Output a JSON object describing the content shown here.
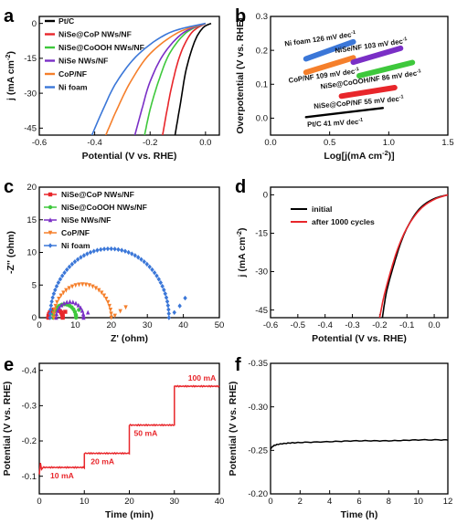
{
  "chart_data": [
    {
      "panel": "a",
      "type": "line",
      "xlabel": "Potential (V vs. RHE)",
      "ylabel": "j (mA cm-2)",
      "xlim": [
        -0.6,
        0.05
      ],
      "ylim": [
        -48,
        3
      ],
      "xticks": [
        -0.6,
        -0.4,
        -0.2,
        0.0
      ],
      "xtick_labels": [
        "-0.6",
        "-0.4",
        "-0.2",
        "0.0"
      ],
      "yticks": [
        0,
        -15,
        -30,
        -45
      ],
      "ytick_labels": [
        "0",
        "-15",
        "-30",
        "-45"
      ],
      "legend_position": "top-left",
      "series": [
        {
          "name": "Pt/C",
          "color": "#000000",
          "x": [
            0.02,
            -0.01,
            -0.04,
            -0.07,
            -0.09,
            -0.11
          ],
          "y": [
            0,
            -2,
            -8,
            -20,
            -34,
            -48
          ]
        },
        {
          "name": "NiSe@CoP NWs/NF",
          "color": "#e8262b",
          "x": [
            0.0,
            -0.05,
            -0.09,
            -0.12,
            -0.14,
            -0.155
          ],
          "y": [
            0,
            -4,
            -13,
            -26,
            -38,
            -48
          ]
        },
        {
          "name": "NiSe@CoOOH NWs/NF",
          "color": "#3ec83c",
          "x": [
            0.0,
            -0.07,
            -0.13,
            -0.17,
            -0.2,
            -0.22
          ],
          "y": [
            0,
            -4,
            -13,
            -25,
            -37,
            -48
          ]
        },
        {
          "name": "NiSe NWs/NF",
          "color": "#7a2fc6",
          "x": [
            0.0,
            -0.08,
            -0.15,
            -0.2,
            -0.23,
            -0.255
          ],
          "y": [
            0,
            -4,
            -13,
            -25,
            -37,
            -48
          ]
        },
        {
          "name": "CoP/NF",
          "color": "#f57f2b",
          "x": [
            0.0,
            -0.1,
            -0.2,
            -0.27,
            -0.32,
            -0.36
          ],
          "y": [
            0,
            -4,
            -13,
            -25,
            -37,
            -48
          ]
        },
        {
          "name": "Ni foam",
          "color": "#3b77d8",
          "x": [
            0.0,
            -0.13,
            -0.24,
            -0.32,
            -0.37,
            -0.41
          ],
          "y": [
            0,
            -4,
            -13,
            -25,
            -37,
            -48
          ]
        }
      ]
    },
    {
      "panel": "b",
      "type": "line",
      "xlabel": "Log[j(mA cm-2)]",
      "ylabel": "Overpotential (V vs. RHE)",
      "xlim": [
        0.0,
        1.5
      ],
      "ylim": [
        -0.05,
        0.3
      ],
      "xticks": [
        0.0,
        0.5,
        1.0,
        1.5
      ],
      "xtick_labels": [
        "0.0",
        "0.5",
        "1.0",
        "1.5"
      ],
      "yticks": [
        0.0,
        0.1,
        0.2,
        0.3
      ],
      "ytick_labels": [
        "0.0",
        "0.1",
        "0.2",
        "0.3"
      ],
      "series": [
        {
          "name": "Ni foam",
          "annotation": "Ni foam 126 mV dec-1",
          "color": "#3b77d8",
          "x": [
            0.3,
            0.7
          ],
          "y": [
            0.175,
            0.225
          ]
        },
        {
          "name": "CoP/NF",
          "annotation": "CoP/NF 109 mV dec-1",
          "color": "#f57f2b",
          "x": [
            0.3,
            0.7
          ],
          "y": [
            0.135,
            0.178
          ]
        },
        {
          "name": "NiSe/NF",
          "annotation": "NiSe/NF 103 mV dec-1",
          "color": "#7a2fc6",
          "x": [
            0.7,
            1.1
          ],
          "y": [
            0.165,
            0.206
          ]
        },
        {
          "name": "NiSe@CoOOH/NF",
          "annotation": "NiSe@CoOOH/NF 86 mV dec-1",
          "color": "#3ec83c",
          "x": [
            0.75,
            1.2
          ],
          "y": [
            0.125,
            0.164
          ]
        },
        {
          "name": "NiSe@CoP/NF",
          "annotation": "NiSe@CoP/NF 55 mV dec-1",
          "color": "#e8262b",
          "x": [
            0.6,
            1.05
          ],
          "y": [
            0.065,
            0.09
          ]
        },
        {
          "name": "Pt/C",
          "annotation": "Pt/C 41 mV dec-1",
          "color": "#000000",
          "x": [
            0.3,
            0.95
          ],
          "y": [
            0.003,
            0.03
          ]
        }
      ]
    },
    {
      "panel": "c",
      "type": "scatter",
      "xlabel": "Z' (ohm)",
      "ylabel": "-Z'' (ohm)",
      "xlim": [
        0,
        50
      ],
      "ylim": [
        0,
        20
      ],
      "xticks": [
        0,
        10,
        20,
        30,
        40,
        50
      ],
      "xtick_labels": [
        "0",
        "10",
        "20",
        "30",
        "40",
        "50"
      ],
      "yticks": [
        0,
        5,
        10,
        15,
        20
      ],
      "ytick_labels": [
        "0",
        "5",
        "10",
        "15",
        "20"
      ],
      "legend_position": "top-left",
      "series": [
        {
          "name": "NiSe@CoP NWs/NF",
          "color": "#e8262b",
          "marker": "square",
          "center": 4.5,
          "radius": 2.0,
          "tail": [
            [
              6.5,
              0.3
            ],
            [
              7.2,
              0.9
            ]
          ]
        },
        {
          "name": "NiSe@CoOOH NWs/NF",
          "color": "#3ec83c",
          "marker": "circle",
          "center": 7.0,
          "radius": 3.2,
          "tail": [
            [
              10.2,
              0.3
            ],
            [
              11.0,
              1.2
            ]
          ]
        },
        {
          "name": "NiSe NWs/NF",
          "color": "#7a2fc6",
          "marker": "triangle",
          "center": 8.5,
          "radius": 3.8,
          "tail": [
            [
              12.3,
              0.2
            ],
            [
              13.5,
              0.8
            ]
          ]
        },
        {
          "name": "CoP/NF",
          "color": "#f57f2b",
          "marker": "triangle-down",
          "center": 12.0,
          "radius": 8.0,
          "tail": [
            [
              21.0,
              0.3
            ],
            [
              22.5,
              1.0
            ],
            [
              24.0,
              1.6
            ]
          ]
        },
        {
          "name": "Ni foam",
          "color": "#3b77d8",
          "marker": "diamond",
          "center": 19.5,
          "radius": 16.5,
          "tail": [
            [
              37.5,
              0.8
            ],
            [
              39.0,
              1.8
            ],
            [
              40.5,
              3.0
            ]
          ]
        }
      ]
    },
    {
      "panel": "d",
      "type": "line",
      "xlabel": "Potential (V vs. RHE)",
      "ylabel": "j (mA cm-2)",
      "xlim": [
        -0.6,
        0.05
      ],
      "ylim": [
        -48,
        3
      ],
      "xticks": [
        -0.6,
        -0.5,
        -0.4,
        -0.3,
        -0.2,
        -0.1,
        0.0
      ],
      "xtick_labels": [
        "-0.6",
        "-0.5",
        "-0.4",
        "-0.3",
        "-0.2",
        "-0.1",
        "0.0"
      ],
      "yticks": [
        0,
        -15,
        -30,
        -45
      ],
      "ytick_labels": [
        "0",
        "-15",
        "-30",
        "-45"
      ],
      "legend_position": "top-left",
      "series": [
        {
          "name": "initial",
          "color": "#000000",
          "x": [
            0.05,
            0.0,
            -0.05,
            -0.09,
            -0.12,
            -0.15,
            -0.175,
            -0.19
          ],
          "y": [
            0,
            -1.5,
            -5,
            -11,
            -18,
            -28,
            -38,
            -48
          ]
        },
        {
          "name": "after 1000 cycles",
          "color": "#e8262b",
          "x": [
            0.05,
            0.0,
            -0.05,
            -0.095,
            -0.13,
            -0.16,
            -0.185,
            -0.2
          ],
          "y": [
            0,
            -1.8,
            -5.5,
            -12,
            -20,
            -30,
            -40,
            -48
          ]
        }
      ]
    },
    {
      "panel": "e",
      "type": "line",
      "xlabel": "Time (min)",
      "ylabel": "Potential (V vs. RHE)",
      "xlim": [
        0,
        40
      ],
      "ylim": [
        -0.05,
        -0.42
      ],
      "xticks": [
        0,
        10,
        20,
        30,
        40
      ],
      "xtick_labels": [
        "0",
        "10",
        "20",
        "30",
        "40"
      ],
      "yticks": [
        -0.1,
        -0.2,
        -0.3,
        -0.4
      ],
      "ytick_labels": [
        "-0.1",
        "-0.2",
        "-0.3",
        "-0.4"
      ],
      "annotations": [
        "10 mA",
        "20 mA",
        "50 mA",
        "100 mA"
      ],
      "color": "#e8262b",
      "steps": [
        {
          "t0": 0,
          "t1": 10,
          "v": -0.125,
          "label": "10 mA"
        },
        {
          "t0": 10,
          "t1": 20,
          "v": -0.165,
          "label": "20 mA"
        },
        {
          "t0": 20,
          "t1": 30,
          "v": -0.245,
          "label": "50 mA"
        },
        {
          "t0": 30,
          "t1": 40,
          "v": -0.355,
          "label": "100 mA"
        }
      ]
    },
    {
      "panel": "f",
      "type": "line",
      "xlabel": "Time (h)",
      "ylabel": "Potential (V vs. RHE)",
      "xlim": [
        0,
        12
      ],
      "ylim": [
        -0.2,
        -0.35
      ],
      "xticks": [
        0,
        2,
        4,
        6,
        8,
        10,
        12
      ],
      "xtick_labels": [
        "0",
        "2",
        "4",
        "6",
        "8",
        "10",
        "12"
      ],
      "yticks": [
        -0.2,
        -0.25,
        -0.3,
        -0.35
      ],
      "ytick_labels": [
        "-0.20",
        "-0.25",
        "-0.30",
        "-0.35"
      ],
      "color": "#000000",
      "x": [
        0,
        0.3,
        1,
        2,
        4,
        6,
        8,
        10,
        12
      ],
      "y": [
        -0.252,
        -0.256,
        -0.258,
        -0.259,
        -0.26,
        -0.261,
        -0.261,
        -0.262,
        -0.262
      ]
    }
  ]
}
